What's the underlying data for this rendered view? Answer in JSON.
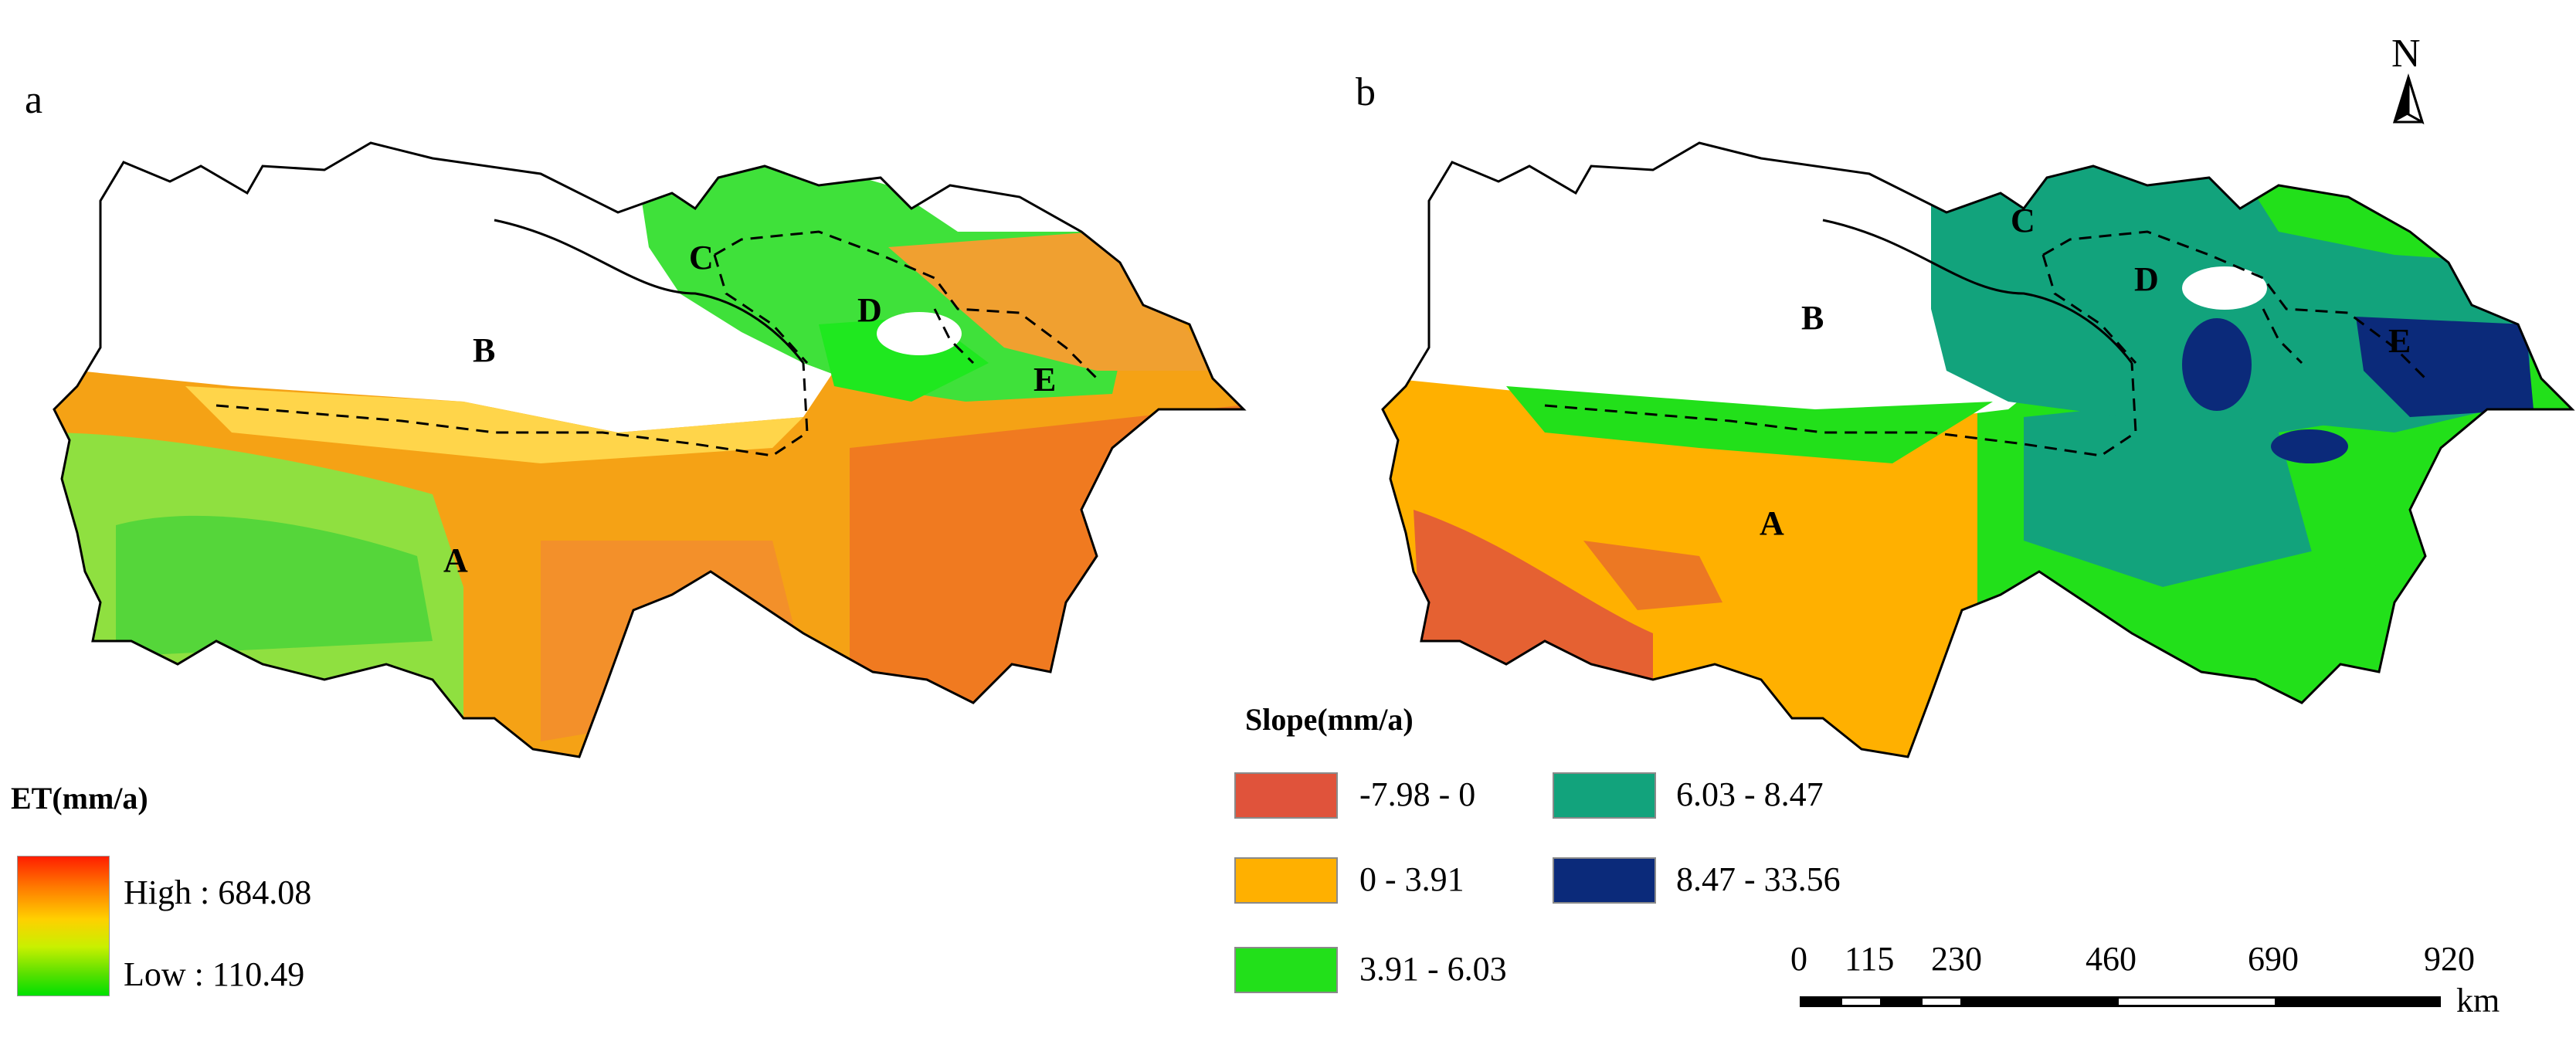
{
  "panels": {
    "a": {
      "letter": "a",
      "region_labels": [
        "A",
        "B",
        "C",
        "D",
        "E"
      ]
    },
    "b": {
      "letter": "b",
      "region_labels": [
        "A",
        "B",
        "C",
        "D",
        "E"
      ]
    }
  },
  "north_arrow": {
    "label": "N"
  },
  "legend_et": {
    "title": "ET(mm/a)",
    "high_label": "High : 684.08",
    "low_label": "Low : 110.49",
    "colors": {
      "high": "#ff1e00",
      "mid": "#ffd000",
      "low": "#00e000"
    }
  },
  "legend_slope": {
    "title": "Slope(mm/a)",
    "classes": [
      {
        "label": "-7.98 - 0",
        "color": "#e0533b"
      },
      {
        "label": "0 - 3.91",
        "color": "#ffb000"
      },
      {
        "label": "3.91 - 6.03",
        "color": "#22e01a"
      },
      {
        "label": "6.03 - 8.47",
        "color": "#12a37c"
      },
      {
        "label": "8.47 - 33.56",
        "color": "#0b2a7a"
      }
    ]
  },
  "scale_bar": {
    "ticks": [
      "0",
      "115",
      "230",
      "460",
      "690",
      "920"
    ],
    "unit": "km"
  }
}
